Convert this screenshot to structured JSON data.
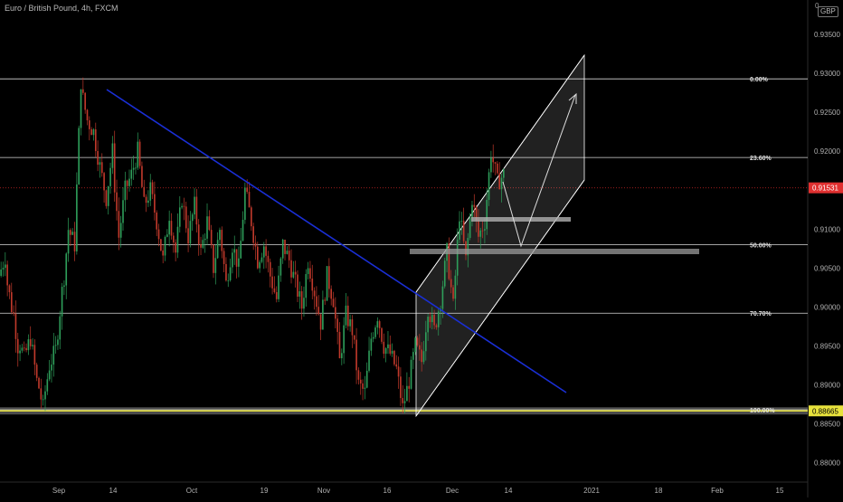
{
  "header": {
    "title": "Euro / British Pound, 4h, FXCM",
    "currency_badge": "GBP",
    "currency_top": "0"
  },
  "chart_data": {
    "type": "candlestick",
    "title": "Euro / British Pound, 4h, FXCM",
    "ylim": [
      0.8775,
      0.9385
    ],
    "y_ticks": [
      "0.93500",
      "0.93000",
      "0.92500",
      "0.92000",
      "0.91500",
      "0.91000",
      "0.90500",
      "0.90000",
      "0.89500",
      "0.89000",
      "0.88500",
      "0.88000"
    ],
    "x_ticks": [
      "Sep",
      "14",
      "Oct",
      "19",
      "Nov",
      "16",
      "Dec",
      "14",
      "2021",
      "18",
      "Feb",
      "15"
    ],
    "price_labels": [
      {
        "label": "0.91531",
        "value": 0.9153,
        "color": "#e03030"
      },
      {
        "label": "0.88665",
        "value": 0.88665,
        "color": "#e8e23c"
      }
    ],
    "fib_levels": [
      {
        "label": "0.00%",
        "value": 0.9293
      },
      {
        "label": "23.60%",
        "value": 0.9192
      },
      {
        "label": "50.00%",
        "value": 0.908
      },
      {
        "label": "70.70%",
        "value": 0.8992
      },
      {
        "label": "100.00%",
        "value": 0.8868
      }
    ],
    "current_price": 0.9153,
    "support_price": 0.88665,
    "price_path": [
      [
        0.904,
        0.9065
      ],
      [
        0.9045,
        0.9
      ],
      [
        0.901,
        0.895
      ],
      [
        0.896,
        0.8935
      ],
      [
        0.8935,
        0.896
      ],
      [
        0.896,
        0.8905
      ],
      [
        0.891,
        0.887
      ],
      [
        0.8875,
        0.8925
      ],
      [
        0.8925,
        0.8945
      ],
      [
        0.8945,
        0.902
      ],
      [
        0.901,
        0.91
      ],
      [
        0.91,
        0.908
      ],
      [
        0.9085,
        0.929
      ],
      [
        0.928,
        0.924
      ],
      [
        0.924,
        0.9225
      ],
      [
        0.9225,
        0.918
      ],
      [
        0.918,
        0.914
      ],
      [
        0.914,
        0.92
      ],
      [
        0.919,
        0.909
      ],
      [
        0.909,
        0.915
      ],
      [
        0.915,
        0.917
      ],
      [
        0.917,
        0.92
      ],
      [
        0.92,
        0.913
      ],
      [
        0.913,
        0.915
      ],
      [
        0.915,
        0.911
      ],
      [
        0.911,
        0.906
      ],
      [
        0.906,
        0.912
      ],
      [
        0.912,
        0.907
      ],
      [
        0.907,
        0.914
      ],
      [
        0.914,
        0.909
      ],
      [
        0.909,
        0.913
      ],
      [
        0.913,
        0.907
      ],
      [
        0.907,
        0.911
      ],
      [
        0.911,
        0.905
      ],
      [
        0.905,
        0.91
      ],
      [
        0.91,
        0.903
      ],
      [
        0.903,
        0.908
      ],
      [
        0.908,
        0.905
      ],
      [
        0.905,
        0.915
      ],
      [
        0.915,
        0.911
      ],
      [
        0.911,
        0.906
      ],
      [
        0.906,
        0.908
      ],
      [
        0.908,
        0.904
      ],
      [
        0.904,
        0.901
      ],
      [
        0.901,
        0.908
      ],
      [
        0.908,
        0.906
      ],
      [
        0.906,
        0.903
      ],
      [
        0.903,
        0.9
      ],
      [
        0.9,
        0.906
      ],
      [
        0.906,
        0.902
      ],
      [
        0.902,
        0.898
      ],
      [
        0.898,
        0.904
      ],
      [
        0.904,
        0.901
      ],
      [
        0.901,
        0.893
      ],
      [
        0.893,
        0.899
      ],
      [
        0.899,
        0.897
      ],
      [
        0.897,
        0.89
      ],
      [
        0.89,
        0.889
      ],
      [
        0.889,
        0.896
      ],
      [
        0.896,
        0.899
      ],
      [
        0.899,
        0.895
      ],
      [
        0.895,
        0.894
      ],
      [
        0.894,
        0.892
      ],
      [
        0.892,
        0.887
      ],
      [
        0.887,
        0.8905
      ],
      [
        0.8905,
        0.895
      ],
      [
        0.895,
        0.893
      ],
      [
        0.893,
        0.9
      ],
      [
        0.9,
        0.897
      ],
      [
        0.897,
        0.901
      ],
      [
        0.901,
        0.907
      ],
      [
        0.907,
        0.9
      ],
      [
        0.9,
        0.912
      ],
      [
        0.912,
        0.906
      ],
      [
        0.906,
        0.914
      ],
      [
        0.914,
        0.909
      ],
      [
        0.909,
        0.911
      ],
      [
        0.911,
        0.92
      ],
      [
        0.92,
        0.916
      ],
      [
        0.916,
        0.917
      ]
    ]
  }
}
